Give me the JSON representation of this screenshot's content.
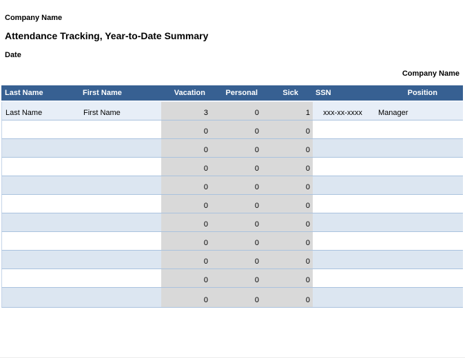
{
  "page": {
    "company_name_top": "Company Name",
    "title": "Attendance Tracking, Year-to-Date Summary",
    "date_label": "Date",
    "company_name_right": "Company Name"
  },
  "table": {
    "columns": [
      {
        "key": "last_name",
        "label": "Last Name",
        "header_align": "left",
        "cell_align": "left",
        "numeric": false
      },
      {
        "key": "first_name",
        "label": "First Name",
        "header_align": "left",
        "cell_align": "left",
        "numeric": false
      },
      {
        "key": "vacation",
        "label": "Vacation",
        "header_align": "right",
        "cell_align": "right",
        "numeric": true
      },
      {
        "key": "personal",
        "label": "Personal",
        "header_align": "right",
        "cell_align": "right",
        "numeric": true
      },
      {
        "key": "sick",
        "label": "Sick",
        "header_align": "right",
        "cell_align": "right",
        "numeric": true
      },
      {
        "key": "ssn",
        "label": "SSN",
        "header_align": "left",
        "cell_align": "center",
        "numeric": false
      },
      {
        "key": "position",
        "label": "Position",
        "header_align": "right",
        "cell_align": "left",
        "numeric": false
      }
    ],
    "rows": [
      {
        "last_name": "Last Name",
        "first_name": "First Name",
        "vacation": "3",
        "personal": "0",
        "sick": "1",
        "ssn": "xxx-xx-xxxx",
        "position": "Manager"
      },
      {
        "last_name": "",
        "first_name": "",
        "vacation": "0",
        "personal": "0",
        "sick": "0",
        "ssn": "",
        "position": ""
      },
      {
        "last_name": "",
        "first_name": "",
        "vacation": "0",
        "personal": "0",
        "sick": "0",
        "ssn": "",
        "position": ""
      },
      {
        "last_name": "",
        "first_name": "",
        "vacation": "0",
        "personal": "0",
        "sick": "0",
        "ssn": "",
        "position": ""
      },
      {
        "last_name": "",
        "first_name": "",
        "vacation": "0",
        "personal": "0",
        "sick": "0",
        "ssn": "",
        "position": ""
      },
      {
        "last_name": "",
        "first_name": "",
        "vacation": "0",
        "personal": "0",
        "sick": "0",
        "ssn": "",
        "position": ""
      },
      {
        "last_name": "",
        "first_name": "",
        "vacation": "0",
        "personal": "0",
        "sick": "0",
        "ssn": "",
        "position": ""
      },
      {
        "last_name": "",
        "first_name": "",
        "vacation": "0",
        "personal": "0",
        "sick": "0",
        "ssn": "",
        "position": ""
      },
      {
        "last_name": "",
        "first_name": "",
        "vacation": "0",
        "personal": "0",
        "sick": "0",
        "ssn": "",
        "position": ""
      },
      {
        "last_name": "",
        "first_name": "",
        "vacation": "0",
        "personal": "0",
        "sick": "0",
        "ssn": "",
        "position": ""
      },
      {
        "last_name": "",
        "first_name": "",
        "vacation": "0",
        "personal": "0",
        "sick": "0",
        "ssn": "",
        "position": ""
      }
    ]
  },
  "colors": {
    "header_bg": "#376092",
    "header_text": "#ffffff",
    "row_stripe": "#dce6f1",
    "row_first": "#e7eef7",
    "numeric_bg": "#d9d9d9",
    "row_border": "#a9c2de"
  }
}
